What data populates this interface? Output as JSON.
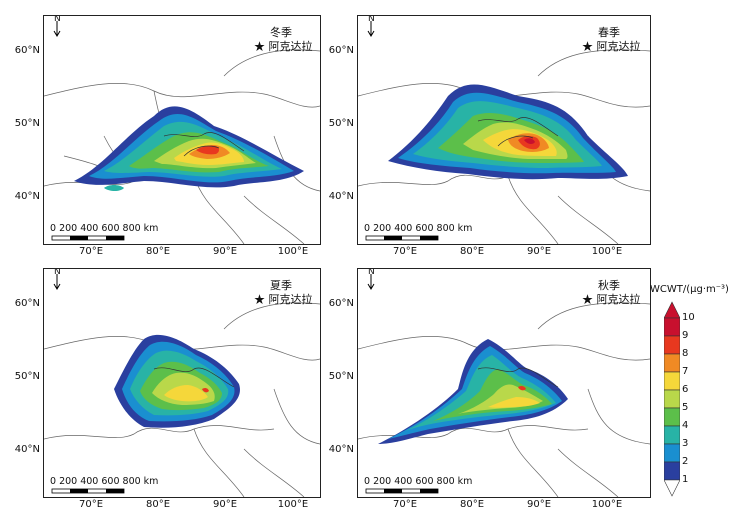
{
  "panels": [
    {
      "season": "冬季",
      "location": "阿克达拉"
    },
    {
      "season": "春季",
      "location": "阿克达拉"
    },
    {
      "season": "夏季",
      "location": "阿克达拉"
    },
    {
      "season": "秋季",
      "location": "阿克达拉"
    }
  ],
  "north_label": "N",
  "scale_bar_label": "0 200 400 600 800 km",
  "lat_ticks": [
    "60°N",
    "50°N",
    "40°N"
  ],
  "lon_ticks": [
    "70°E",
    "80°E",
    "90°E",
    "100°E"
  ],
  "legend": {
    "title": "WCWT/(μg·m⁻³)",
    "labels": [
      "10",
      "9",
      "8",
      "7",
      "6",
      "5",
      "4",
      "3",
      "2",
      "1"
    ],
    "colors": [
      "#c8102e",
      "#e8381f",
      "#f08a24",
      "#f5d73a",
      "#b9d84a",
      "#5cbf4a",
      "#28b3a6",
      "#1a8fd0",
      "#2a3f9f"
    ]
  },
  "colors": {
    "border": "#555555",
    "background": "#ffffff"
  }
}
